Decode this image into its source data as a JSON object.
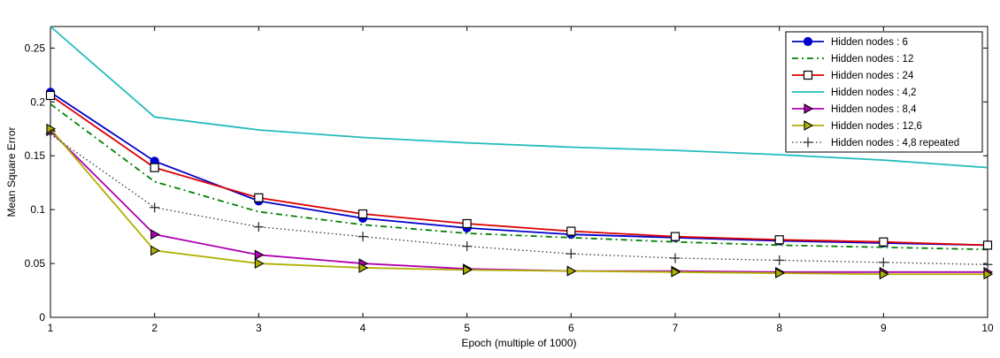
{
  "chart_data": {
    "type": "line",
    "xlabel": "Epoch (multiple of 1000)",
    "ylabel": "Mean Square Error",
    "xlim": [
      1,
      10
    ],
    "ylim": [
      0,
      0.27
    ],
    "xticks": [
      "1",
      "2",
      "3",
      "4",
      "5",
      "6",
      "7",
      "8",
      "9",
      "10"
    ],
    "yticks": [
      "0",
      "0.05",
      "0.1",
      "0.15",
      "0.2",
      "0.25"
    ],
    "grid": false,
    "legend_position": "top-right",
    "x": [
      1,
      2,
      3,
      4,
      5,
      6,
      7,
      8,
      9,
      10
    ],
    "series": [
      {
        "name": "Hidden nodes : 6",
        "color": "#0000cc",
        "line_style": "solid",
        "marker": "circle",
        "values": [
          0.209,
          0.145,
          0.108,
          0.092,
          0.083,
          0.077,
          0.074,
          0.071,
          0.069,
          0.067
        ]
      },
      {
        "name": "Hidden nodes : 12",
        "color": "#007f00",
        "line_style": "dashdot",
        "marker": "none",
        "values": [
          0.198,
          0.126,
          0.098,
          0.086,
          0.078,
          0.074,
          0.07,
          0.067,
          0.065,
          0.063
        ]
      },
      {
        "name": "Hidden nodes : 24",
        "color": "#dd0000",
        "line_style": "solid",
        "marker": "square",
        "values": [
          0.206,
          0.139,
          0.111,
          0.096,
          0.087,
          0.08,
          0.075,
          0.072,
          0.07,
          0.067
        ]
      },
      {
        "name": "Hidden nodes : 4,2",
        "color": "#22bbbb",
        "line_style": "solid",
        "marker": "none",
        "values": [
          0.27,
          0.186,
          0.174,
          0.167,
          0.162,
          0.158,
          0.155,
          0.151,
          0.146,
          0.139
        ]
      },
      {
        "name": "Hidden nodes : 8,4",
        "color": "#b000b0",
        "line_style": "solid",
        "marker": "triangle-right",
        "values": [
          0.173,
          0.077,
          0.058,
          0.05,
          0.045,
          0.043,
          0.043,
          0.042,
          0.042,
          0.042
        ]
      },
      {
        "name": "Hidden nodes : 12,6",
        "color": "#b0b000",
        "line_style": "solid",
        "marker": "triangle-right",
        "values": [
          0.175,
          0.062,
          0.05,
          0.046,
          0.044,
          0.043,
          0.042,
          0.041,
          0.04,
          0.04
        ]
      },
      {
        "name": "Hidden nodes : 4,8 repeated",
        "color": "#333333",
        "line_style": "dotted",
        "marker": "plus",
        "values": [
          0.17,
          0.102,
          0.084,
          0.075,
          0.066,
          0.059,
          0.055,
          0.053,
          0.051,
          0.049
        ]
      }
    ]
  }
}
